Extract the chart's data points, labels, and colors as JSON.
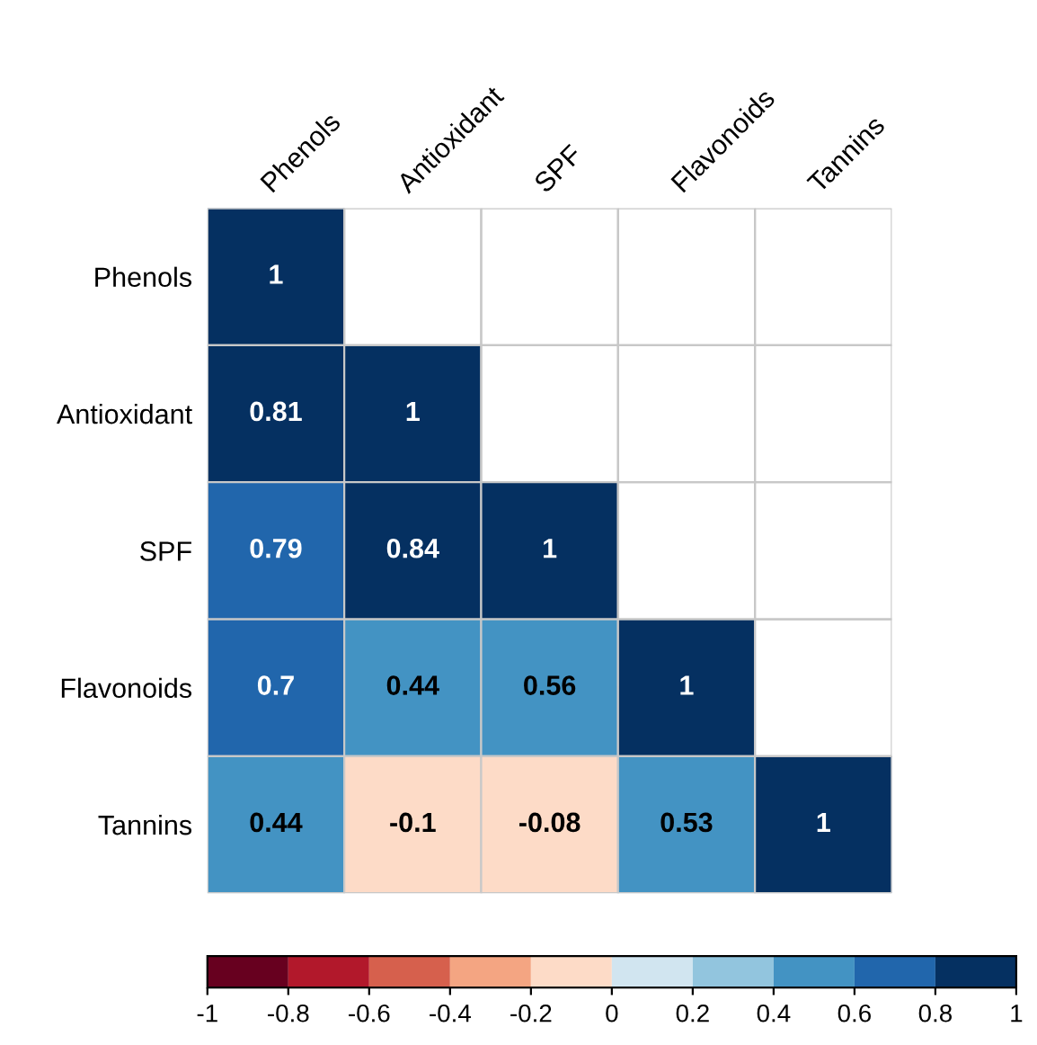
{
  "chart_data": {
    "type": "heatmap",
    "categories": [
      "Phenols",
      "Antioxidant",
      "SPF",
      "Flavonoids",
      "Tannins"
    ],
    "y_categories": [
      "Phenols",
      "Antioxidant",
      "SPF",
      "Flavonoids",
      "Tannins"
    ],
    "cells": [
      [
        1,
        null,
        null,
        null,
        null
      ],
      [
        0.81,
        1,
        null,
        null,
        null
      ],
      [
        0.79,
        0.84,
        1,
        null,
        null
      ],
      [
        0.7,
        0.44,
        0.56,
        1,
        null
      ],
      [
        0.44,
        -0.1,
        -0.08,
        0.53,
        1
      ]
    ],
    "data_labels": true,
    "clim": [
      -1,
      1
    ],
    "cticks": [
      -1,
      -0.8,
      -0.6,
      -0.4,
      -0.2,
      0,
      0.2,
      0.4,
      0.6,
      0.8,
      1
    ],
    "colors": [
      "#67001f",
      "#b2182b",
      "#d6604d",
      "#f4a582",
      "#fddbc7",
      "#d1e5f0",
      "#92c5de",
      "#4393c3",
      "#2166ac",
      "#053061"
    ]
  }
}
